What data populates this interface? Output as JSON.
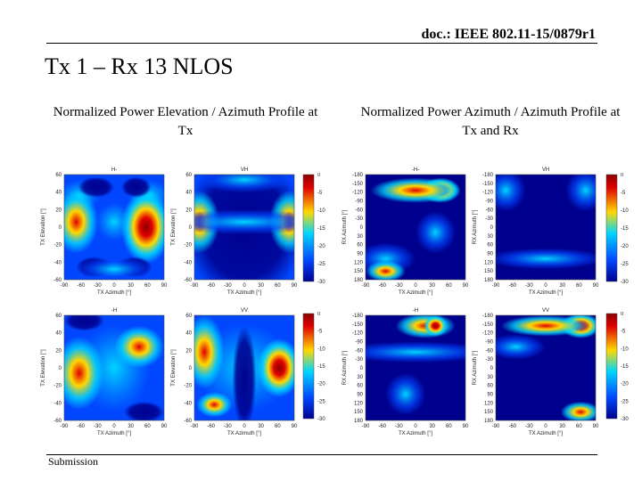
{
  "header": {
    "doc_id": "doc.: IEEE 802.11-15/0879r1"
  },
  "slide": {
    "title": "Tx 1 – Rx 13 NLOS",
    "caption_left": "Normalized Power Elevation / Azimuth Profile at Tx",
    "caption_right": "Normalized Power Azimuth / Azimuth Profile at Tx and Rx"
  },
  "footer": {
    "label": "Submission"
  },
  "colors": {
    "dark_blue": "#00008f",
    "blue": "#0047ff",
    "cyan": "#00d6ff",
    "yellow": "#ffd800",
    "red": "#e00000",
    "dark_red": "#8c0000"
  },
  "chart_data": [
    {
      "type": "heatmap",
      "title": "H-",
      "xlabel": "TX Azimuth [°]",
      "ylabel": "TX Elevation [°]",
      "x_ticks": [
        "-90",
        "-60",
        "-30",
        "0",
        "30",
        "60",
        "90"
      ],
      "y_ticks": [
        "60",
        "40",
        "20",
        "0",
        "-20",
        "-40",
        "-60"
      ]
    },
    {
      "type": "heatmap",
      "title": "VH",
      "xlabel": "TX Azimuth [°]",
      "ylabel": "TX Elevation [°]",
      "x_ticks": [
        "-90",
        "-60",
        "-30",
        "0",
        "30",
        "60",
        "90"
      ],
      "y_ticks": [
        "60",
        "40",
        "20",
        "0",
        "-20",
        "-40",
        "-60"
      ]
    },
    {
      "type": "heatmap",
      "title": "-H-",
      "xlabel": "TX Azimuth [°]",
      "ylabel": "RX Azimuth [°]",
      "x_ticks": [
        "-90",
        "-60",
        "-30",
        "0",
        "30",
        "60",
        "90"
      ],
      "y_ticks": [
        "-180",
        "-150",
        "-120",
        "-90",
        "-60",
        "-30",
        "0",
        "30",
        "60",
        "90",
        "120",
        "150",
        "180"
      ]
    },
    {
      "type": "heatmap",
      "title": "VH",
      "xlabel": "TX Azimuth [°]",
      "ylabel": "RX Azimuth [°]",
      "x_ticks": [
        "-90",
        "-60",
        "-30",
        "0",
        "30",
        "60",
        "90"
      ],
      "y_ticks": [
        "-180",
        "-150",
        "-120",
        "-90",
        "-60",
        "-30",
        "0",
        "30",
        "60",
        "90",
        "120",
        "150",
        "180"
      ]
    },
    {
      "type": "heatmap",
      "title": "-H",
      "xlabel": "TX Azimuth [°]",
      "ylabel": "TX Elevation [°]",
      "x_ticks": [
        "-90",
        "-60",
        "-30",
        "0",
        "30",
        "60",
        "90"
      ],
      "y_ticks": [
        "60",
        "40",
        "20",
        "0",
        "-20",
        "-40",
        "-60"
      ]
    },
    {
      "type": "heatmap",
      "title": "VV",
      "xlabel": "TX Azimuth [°]",
      "ylabel": "TX Elevation [°]",
      "x_ticks": [
        "-90",
        "-60",
        "-30",
        "0",
        "30",
        "60",
        "90"
      ],
      "y_ticks": [
        "60",
        "40",
        "20",
        "0",
        "-20",
        "-40",
        "-60"
      ]
    },
    {
      "type": "heatmap",
      "title": "-H",
      "xlabel": "TX Azimuth [°]",
      "ylabel": "RX Azimuth [°]",
      "x_ticks": [
        "-90",
        "-60",
        "-30",
        "0",
        "30",
        "60",
        "90"
      ],
      "y_ticks": [
        "-180",
        "-150",
        "-120",
        "-90",
        "-60",
        "-30",
        "0",
        "30",
        "60",
        "90",
        "120",
        "150",
        "180"
      ]
    },
    {
      "type": "heatmap",
      "title": "VV",
      "xlabel": "TX Azimuth [°]",
      "ylabel": "RX Azimuth [°]",
      "x_ticks": [
        "-90",
        "-60",
        "-30",
        "0",
        "30",
        "60",
        "90"
      ],
      "y_ticks": [
        "-180",
        "-150",
        "-120",
        "-90",
        "-60",
        "-30",
        "0",
        "30",
        "60",
        "90",
        "120",
        "150",
        "180"
      ]
    },
    {
      "type": "colorbar",
      "ticks": [
        "0",
        "-5",
        "-10",
        "-15",
        "-20",
        "-25",
        "-30"
      ]
    },
    {
      "type": "colorbar",
      "ticks": [
        "0",
        "-5",
        "-10",
        "-15",
        "-20",
        "-25",
        "-30"
      ]
    },
    {
      "type": "colorbar",
      "ticks": [
        "0",
        "-5",
        "-10",
        "-15",
        "-20",
        "-25",
        "-30"
      ]
    },
    {
      "type": "colorbar",
      "ticks": [
        "0",
        "-5",
        "-10",
        "-15",
        "-20",
        "-25",
        "-30"
      ]
    }
  ]
}
